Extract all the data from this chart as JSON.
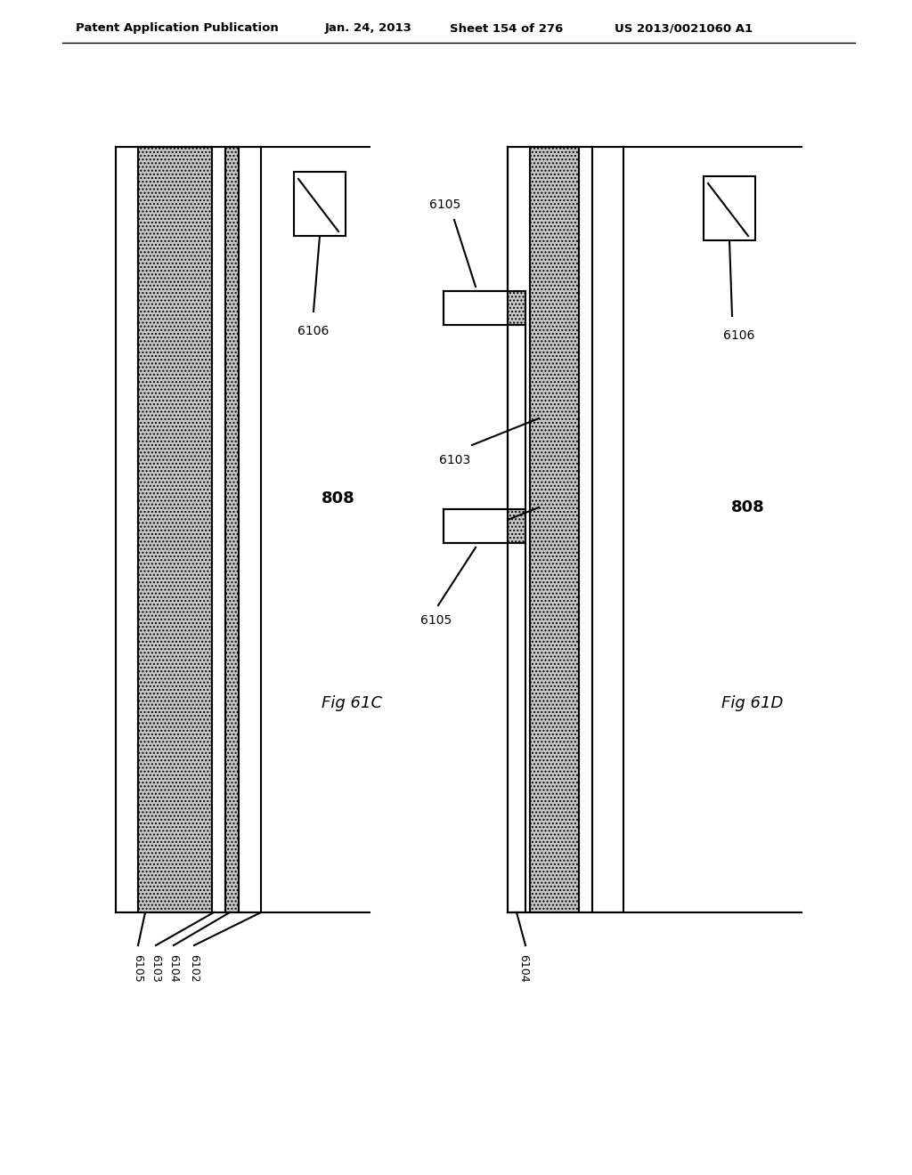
{
  "bg_color": "#ffffff",
  "header_text": "Patent Application Publication",
  "header_date": "Jan. 24, 2013",
  "header_sheet": "Sheet 154 of 276",
  "header_patent": "US 2013/0021060 A1",
  "line_color": "#000000",
  "hatch_color": "#c8c8c8"
}
